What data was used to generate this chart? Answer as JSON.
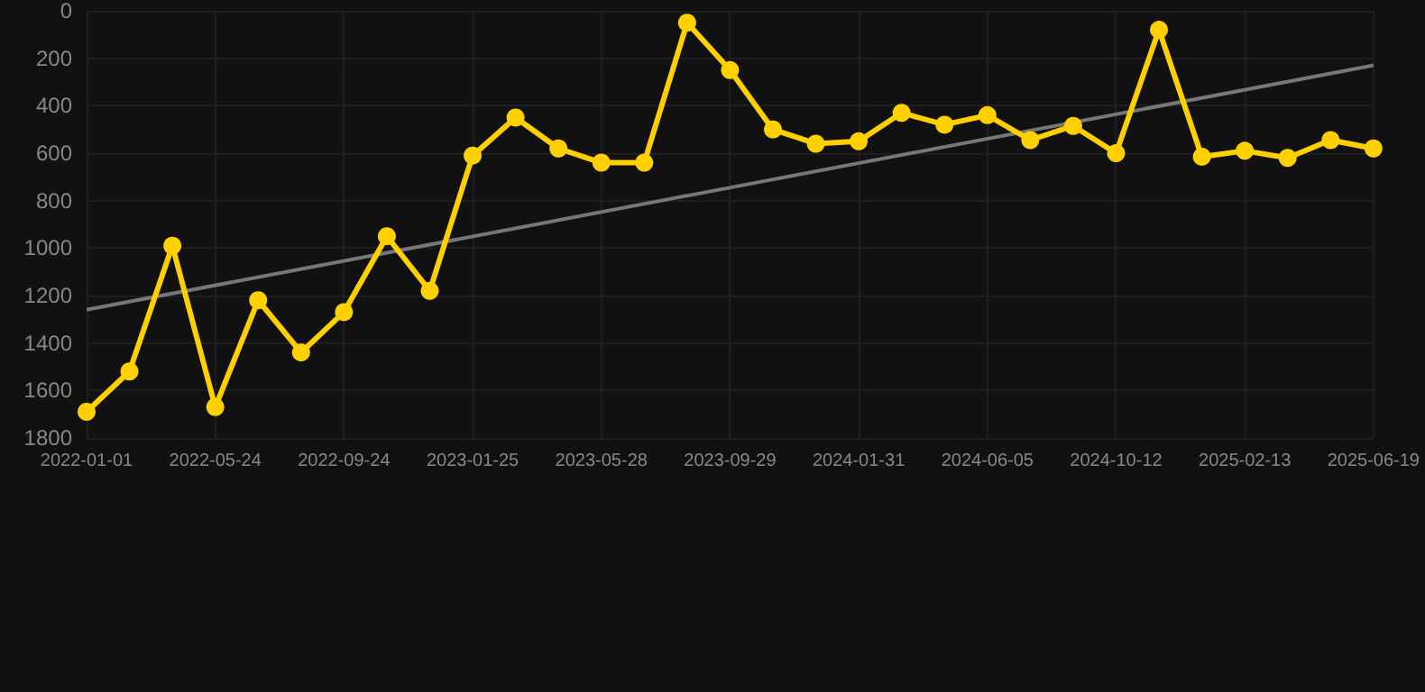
{
  "chart_data": {
    "type": "line",
    "categories": [
      "2022-01-01",
      null,
      null,
      "2022-05-24",
      null,
      null,
      "2022-09-24",
      null,
      null,
      "2023-01-25",
      null,
      null,
      "2023-05-28",
      null,
      null,
      "2023-09-29",
      null,
      null,
      "2024-01-31",
      null,
      null,
      "2024-06-05",
      null,
      null,
      "2024-10-12",
      null,
      null,
      "2025-02-13",
      null,
      null,
      "2025-06-19"
    ],
    "series": [
      {
        "color": "#ffd000",
        "marker": "circle",
        "values": [
          1690,
          1520,
          990,
          1670,
          1220,
          1440,
          1270,
          950,
          1180,
          610,
          450,
          580,
          640,
          640,
          50,
          250,
          500,
          560,
          550,
          430,
          480,
          440,
          545,
          485,
          600,
          80,
          615,
          590,
          620,
          545,
          580
        ]
      },
      {
        "type": "line",
        "color": "#777777",
        "marker": "none",
        "values": [
          1260,
          null,
          null,
          null,
          null,
          null,
          null,
          null,
          null,
          null,
          null,
          null,
          null,
          null,
          null,
          null,
          null,
          null,
          null,
          null,
          null,
          null,
          null,
          null,
          null,
          null,
          null,
          null,
          null,
          null,
          230
        ]
      }
    ],
    "ylim": [
      1800,
      0
    ],
    "yticks": [
      0,
      200,
      400,
      600,
      800,
      1000,
      1200,
      1400,
      1600,
      1800
    ],
    "grid": true
  }
}
